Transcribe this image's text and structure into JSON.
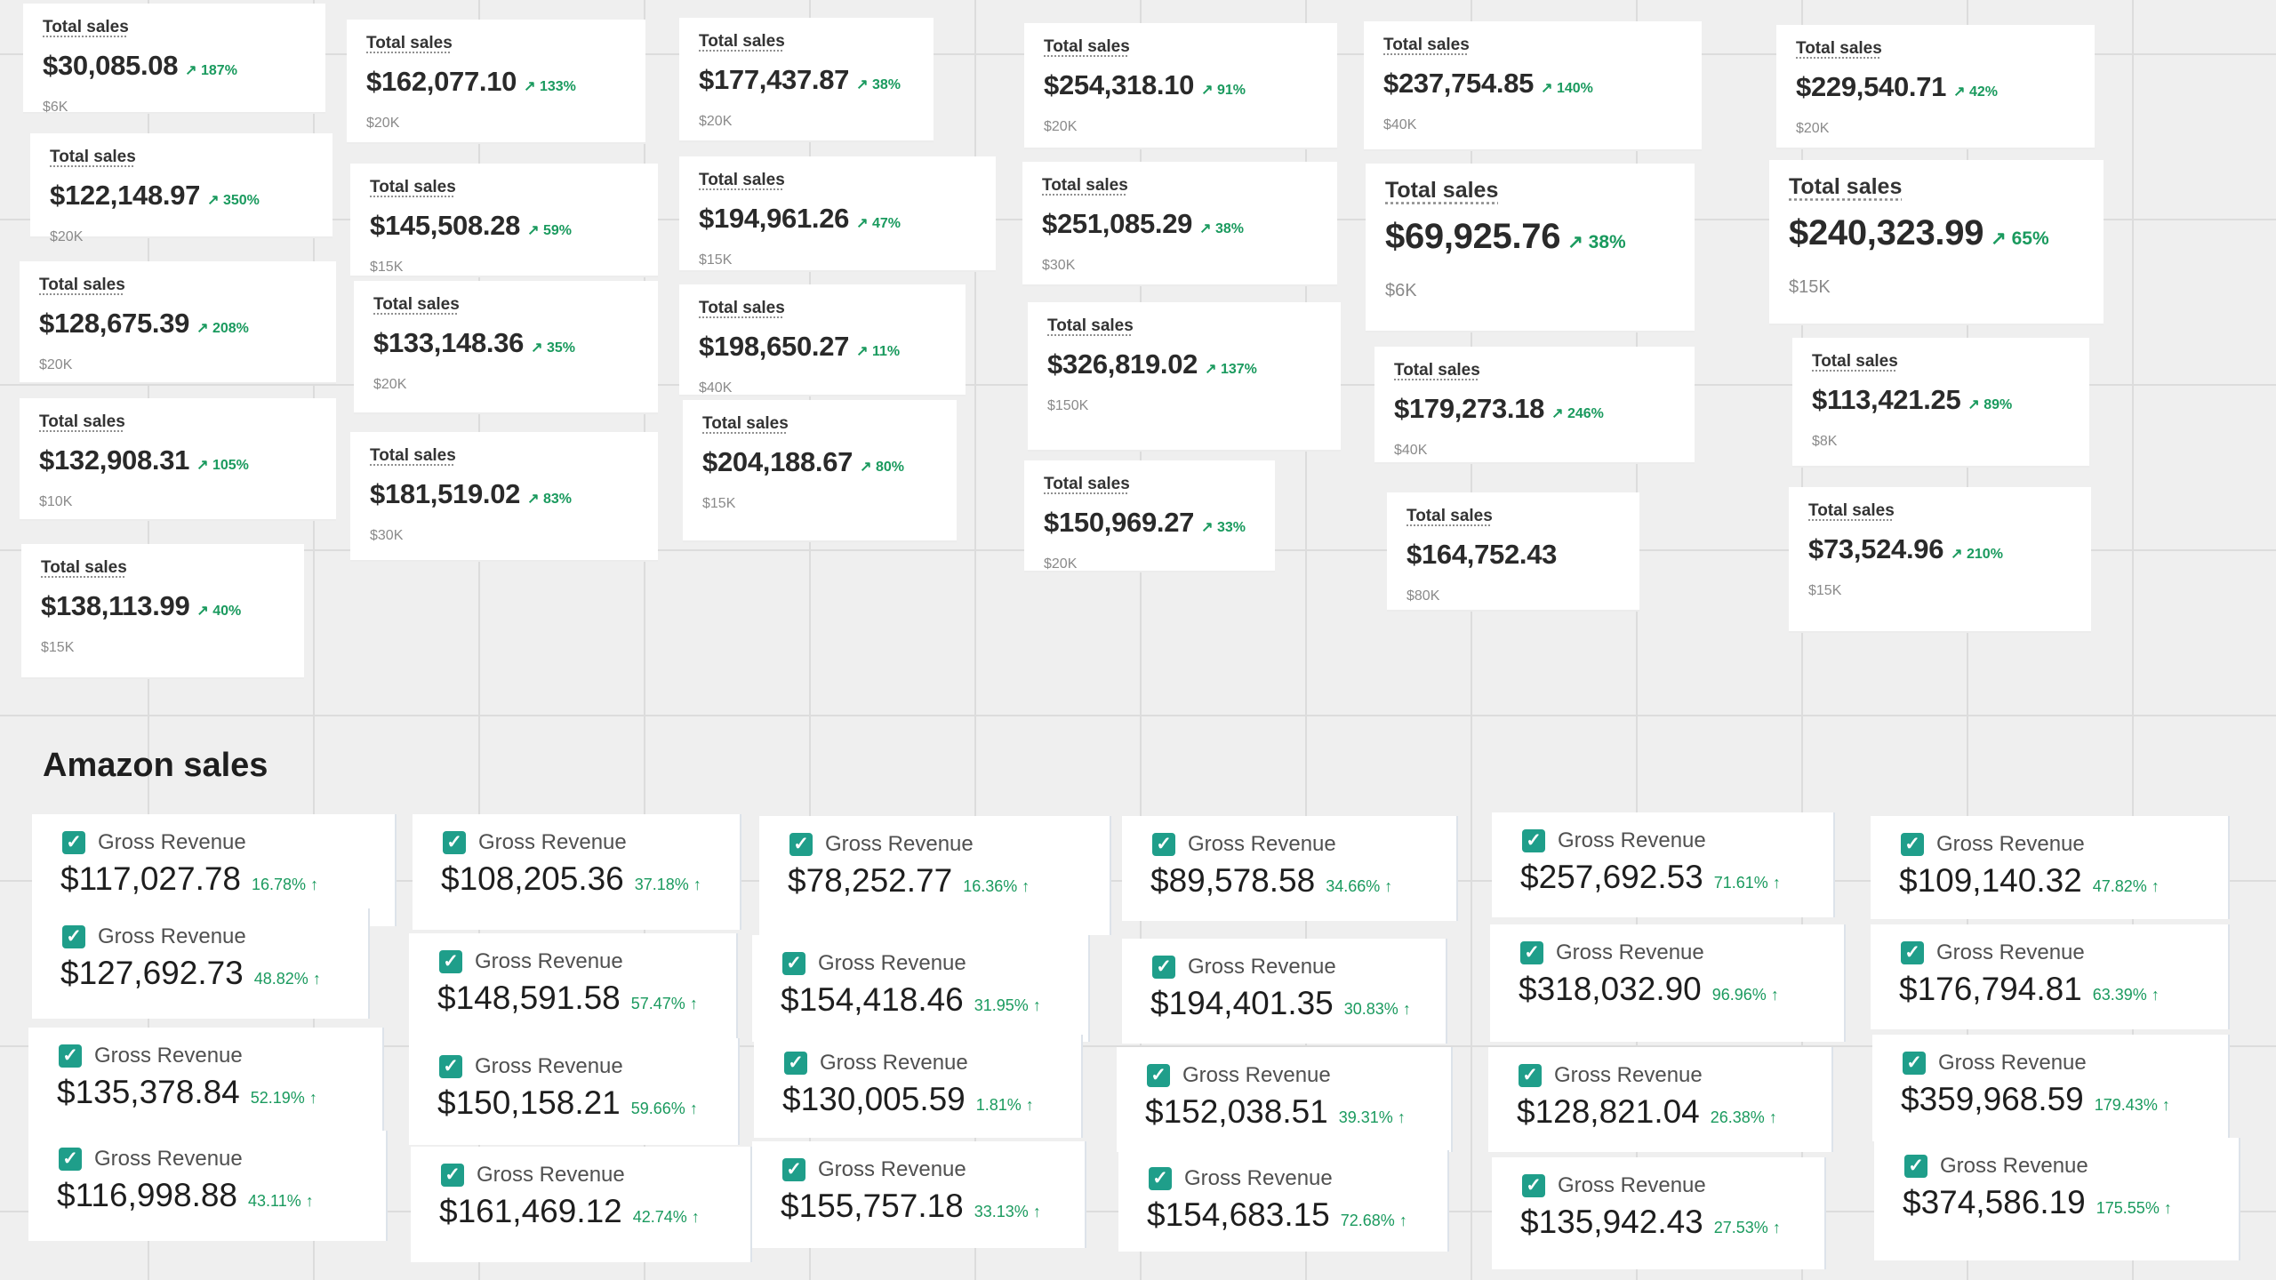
{
  "total_sales_label": "Total sales",
  "gross_revenue_label": "Gross Revenue",
  "checkbox_glyph": "✓",
  "section_title": "Amazon sales",
  "accent_green": "#1a9a5e",
  "checkbox_teal": "#1f9e8a",
  "sales": [
    {
      "value": "$30,085.08",
      "change": "↗ 187%",
      "axis": "$6K"
    },
    {
      "value": "$122,148.97",
      "change": "↗ 350%",
      "axis": "$20K"
    },
    {
      "value": "$128,675.39",
      "change": "↗ 208%",
      "axis": "$20K"
    },
    {
      "value": "$132,908.31",
      "change": "↗ 105%",
      "axis": "$10K"
    },
    {
      "value": "$138,113.99",
      "change": "↗ 40%",
      "axis": "$15K"
    },
    {
      "value": "$162,077.10",
      "change": "↗ 133%",
      "axis": "$20K"
    },
    {
      "value": "$145,508.28",
      "change": "↗ 59%",
      "axis": "$15K"
    },
    {
      "value": "$133,148.36",
      "change": "↗ 35%",
      "axis": "$20K"
    },
    {
      "value": "$181,519.02",
      "change": "↗ 83%",
      "axis": "$30K"
    },
    {
      "value": "$177,437.87",
      "change": "↗ 38%",
      "axis": "$20K"
    },
    {
      "value": "$194,961.26",
      "change": "↗ 47%",
      "axis": "$15K"
    },
    {
      "value": "$198,650.27",
      "change": "↗ 11%",
      "axis": "$40K"
    },
    {
      "value": "$204,188.67",
      "change": "↗ 80%",
      "axis": "$15K"
    },
    {
      "value": "$254,318.10",
      "change": "↗ 91%",
      "axis": "$20K"
    },
    {
      "value": "$251,085.29",
      "change": "↗ 38%",
      "axis": "$30K"
    },
    {
      "value": "$326,819.02",
      "change": "↗ 137%",
      "axis": "$150K"
    },
    {
      "value": "$150,969.27",
      "change": "↗ 33%",
      "axis": "$20K"
    },
    {
      "value": "$237,754.85",
      "change": "↗ 140%",
      "axis": "$40K"
    },
    {
      "value": "$69,925.76",
      "change": "↗ 38%",
      "axis": "$6K"
    },
    {
      "value": "$179,273.18",
      "change": "↗ 246%",
      "axis": "$40K"
    },
    {
      "value": "$164,752.43",
      "change": "",
      "axis": "$80K"
    },
    {
      "value": "$229,540.71",
      "change": "↗ 42%",
      "axis": "$20K"
    },
    {
      "value": "$240,323.99",
      "change": "↗ 65%",
      "axis": "$15K"
    },
    {
      "value": "$113,421.25",
      "change": "↗ 89%",
      "axis": "$8K"
    },
    {
      "value": "$73,524.96",
      "change": "↗ 210%",
      "axis": "$15K"
    }
  ],
  "revenue": [
    {
      "value": "$117,027.78",
      "change": "16.78% ↑"
    },
    {
      "value": "$127,692.73",
      "change": "48.82% ↑"
    },
    {
      "value": "$135,378.84",
      "change": "52.19% ↑"
    },
    {
      "value": "$116,998.88",
      "change": "43.11% ↑"
    },
    {
      "value": "$108,205.36",
      "change": "37.18% ↑"
    },
    {
      "value": "$148,591.58",
      "change": "57.47% ↑"
    },
    {
      "value": "$150,158.21",
      "change": "59.66% ↑"
    },
    {
      "value": "$161,469.12",
      "change": "42.74% ↑"
    },
    {
      "value": "$78,252.77",
      "change": "16.36% ↑"
    },
    {
      "value": "$154,418.46",
      "change": "31.95% ↑"
    },
    {
      "value": "$130,005.59",
      "change": "1.81% ↑"
    },
    {
      "value": "$155,757.18",
      "change": "33.13% ↑"
    },
    {
      "value": "$89,578.58",
      "change": "34.66% ↑"
    },
    {
      "value": "$194,401.35",
      "change": "30.83% ↑"
    },
    {
      "value": "$152,038.51",
      "change": "39.31% ↑"
    },
    {
      "value": "$154,683.15",
      "change": "72.68% ↑"
    },
    {
      "value": "$257,692.53",
      "change": "71.61% ↑"
    },
    {
      "value": "$318,032.90",
      "change": "96.96% ↑"
    },
    {
      "value": "$128,821.04",
      "change": "26.38% ↑"
    },
    {
      "value": "$135,942.43",
      "change": "27.53% ↑"
    },
    {
      "value": "$109,140.32",
      "change": "47.82% ↑"
    },
    {
      "value": "$176,794.81",
      "change": "63.39% ↑"
    },
    {
      "value": "$359,968.59",
      "change": "179.43% ↑"
    },
    {
      "value": "$374,586.19",
      "change": "175.55% ↑"
    }
  ]
}
